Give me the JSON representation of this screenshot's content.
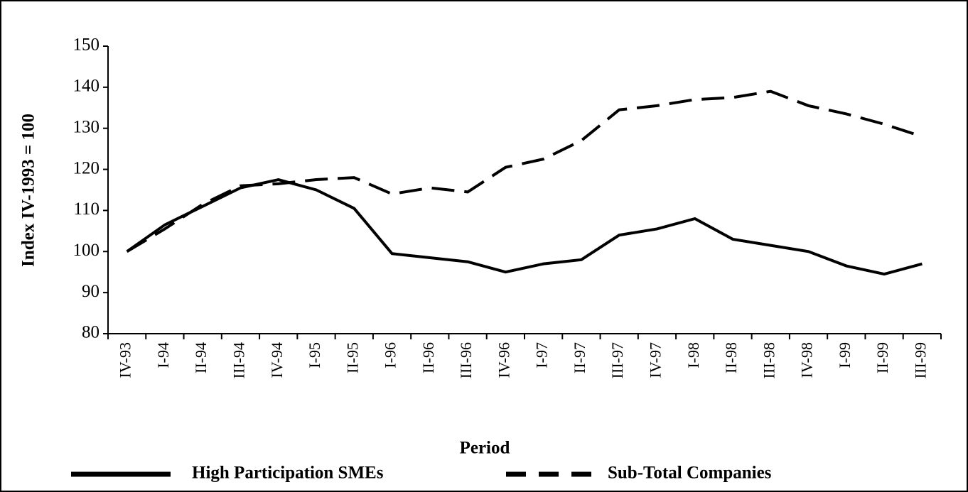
{
  "chart_data": {
    "type": "line",
    "y_label": "Index IV-1993 = 100",
    "x_label": "Period",
    "categories": [
      "IV-93",
      "I-94",
      "II-94",
      "III-94",
      "IV-94",
      "I-95",
      "II-95",
      "I-96",
      "II-96",
      "III-96",
      "IV-96",
      "I-97",
      "II-97",
      "III-97",
      "IV-97",
      "I-98",
      "II-98",
      "III-98",
      "IV-98",
      "I-99",
      "II-99",
      "III-99"
    ],
    "series": [
      {
        "name": "High Participation SMEs",
        "color": "#000000",
        "line_style": "solid",
        "values": [
          100,
          106.5,
          111,
          115.5,
          117.5,
          115,
          110.5,
          99.5,
          98.5,
          97.5,
          95,
          97,
          98,
          104,
          105.5,
          108,
          103,
          101.5,
          100,
          96.5,
          94.5,
          97
        ]
      },
      {
        "name": "Sub-Total Companies",
        "color": "#000000",
        "line_style": "dashed",
        "values": [
          100,
          105.5,
          111.5,
          116,
          116.5,
          117.5,
          118,
          114,
          115.5,
          114.5,
          120.5,
          122.5,
          127,
          134.5,
          135.5,
          137,
          137.5,
          139,
          135.5,
          133.5,
          131,
          128
        ]
      }
    ],
    "ylim": [
      80,
      150
    ],
    "yticks": [
      80,
      90,
      100,
      110,
      120,
      130,
      140,
      150
    ],
    "grid": false
  }
}
